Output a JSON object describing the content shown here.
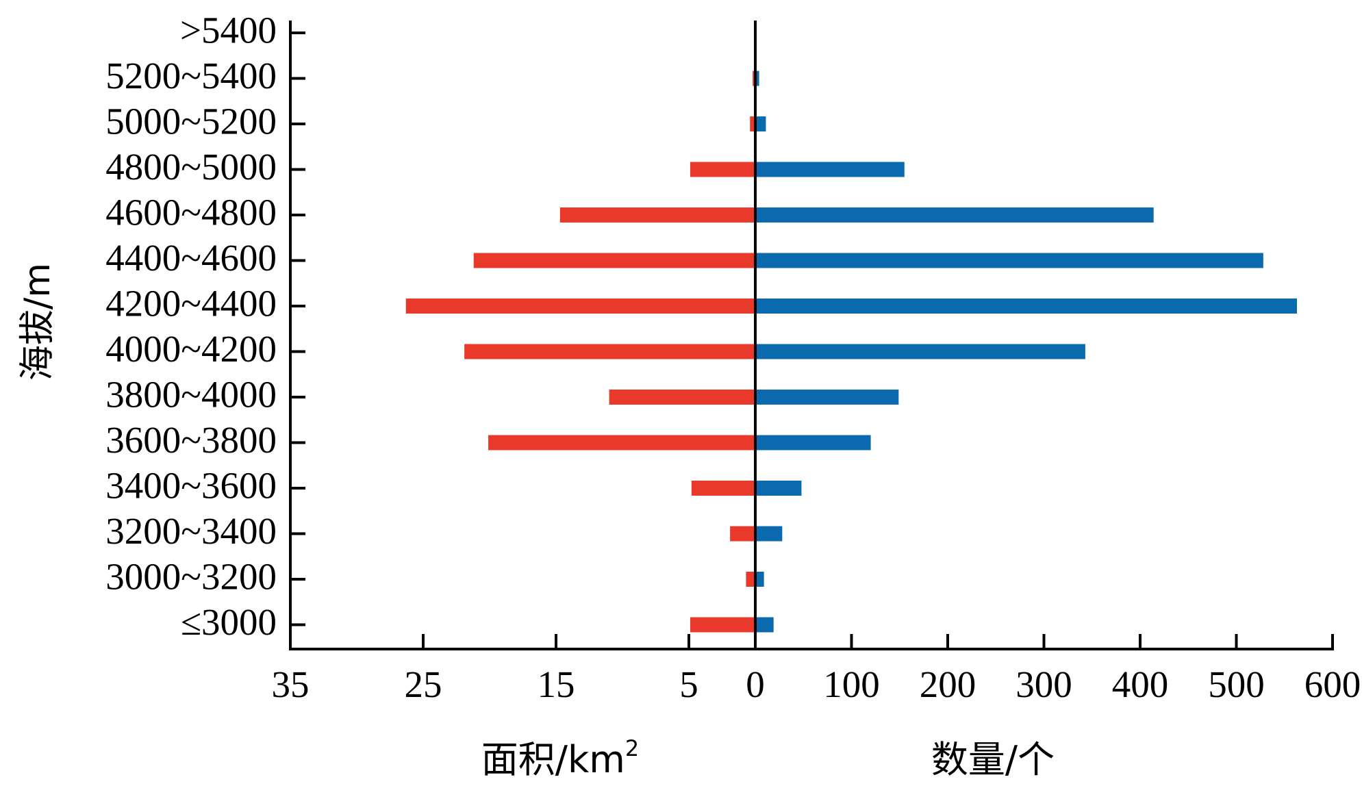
{
  "chart_data": {
    "type": "bar",
    "orientation": "horizontal",
    "layout": "back-to-back",
    "ylabel": "海拔/m",
    "categories": [
      ">5400",
      "5200~5400",
      "5000~5200",
      "4800~5000",
      "4600~4800",
      "4400~4600",
      "4200~4400",
      "4000~4200",
      "3800~4000",
      "3600~3800",
      "3400~3600",
      "3200~3400",
      "3000~3200",
      "≤3000"
    ],
    "left": {
      "xlabel_main": "面积/km",
      "xlabel_sup": "2",
      "color": "#e8392b",
      "xlim": [
        35,
        0
      ],
      "ticks": [
        "35",
        "25",
        "15",
        "5",
        "0"
      ],
      "tick_values": [
        35,
        25,
        15,
        5,
        0
      ],
      "values": [
        0.1,
        0.2,
        0.4,
        4.9,
        14.7,
        21.2,
        26.3,
        21.9,
        11.0,
        20.1,
        4.8,
        1.9,
        0.7,
        4.9
      ]
    },
    "right": {
      "xlabel": "数量/个",
      "color": "#0a6aad",
      "xlim": [
        0,
        600
      ],
      "ticks": [
        "100",
        "200",
        "300",
        "400",
        "500",
        "600"
      ],
      "tick_values": [
        100,
        200,
        300,
        400,
        500,
        600
      ],
      "values": [
        1,
        4,
        11,
        155,
        414,
        528,
        563,
        343,
        149,
        120,
        48,
        28,
        9,
        19
      ]
    }
  }
}
